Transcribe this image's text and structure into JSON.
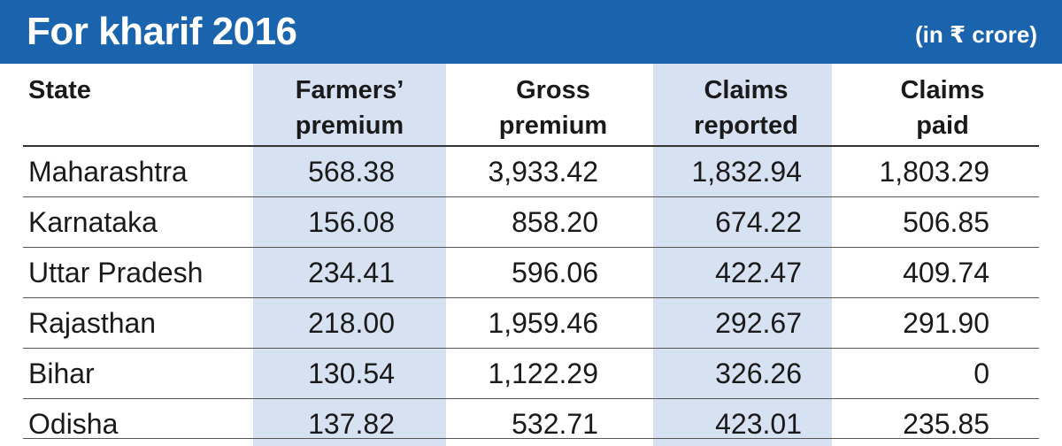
{
  "header": {
    "title": "For kharif 2016",
    "unit": "(in ₹ crore)"
  },
  "colors": {
    "header_bg": "#1a63ad",
    "band": "#d6e2f1",
    "text": "#1a1a1a"
  },
  "chart_data": {
    "type": "table",
    "title": "For kharif 2016",
    "unit": "(in ₹ crore)",
    "columns": [
      {
        "line1": "State",
        "line2": ""
      },
      {
        "line1": "Farmers’",
        "line2": "premium"
      },
      {
        "line1": "Gross",
        "line2": "premium"
      },
      {
        "line1": "Claims",
        "line2": "reported"
      },
      {
        "line1": "Claims",
        "line2": "paid"
      }
    ],
    "rows": [
      [
        "Maharashtra",
        "568.38",
        "3,933.42",
        "1,832.94",
        "1,803.29"
      ],
      [
        "Karnataka",
        "156.08",
        "858.20",
        "674.22",
        "506.85"
      ],
      [
        "Uttar Pradesh",
        "234.41",
        "596.06",
        "422.47",
        "409.74"
      ],
      [
        "Rajasthan",
        "218.00",
        "1,959.46",
        "292.67",
        "291.90"
      ],
      [
        "Bihar",
        "130.54",
        "1,122.29",
        "326.26",
        "0"
      ],
      [
        "Odisha",
        "137.82",
        "532.71",
        "423.01",
        "235.85"
      ]
    ]
  }
}
